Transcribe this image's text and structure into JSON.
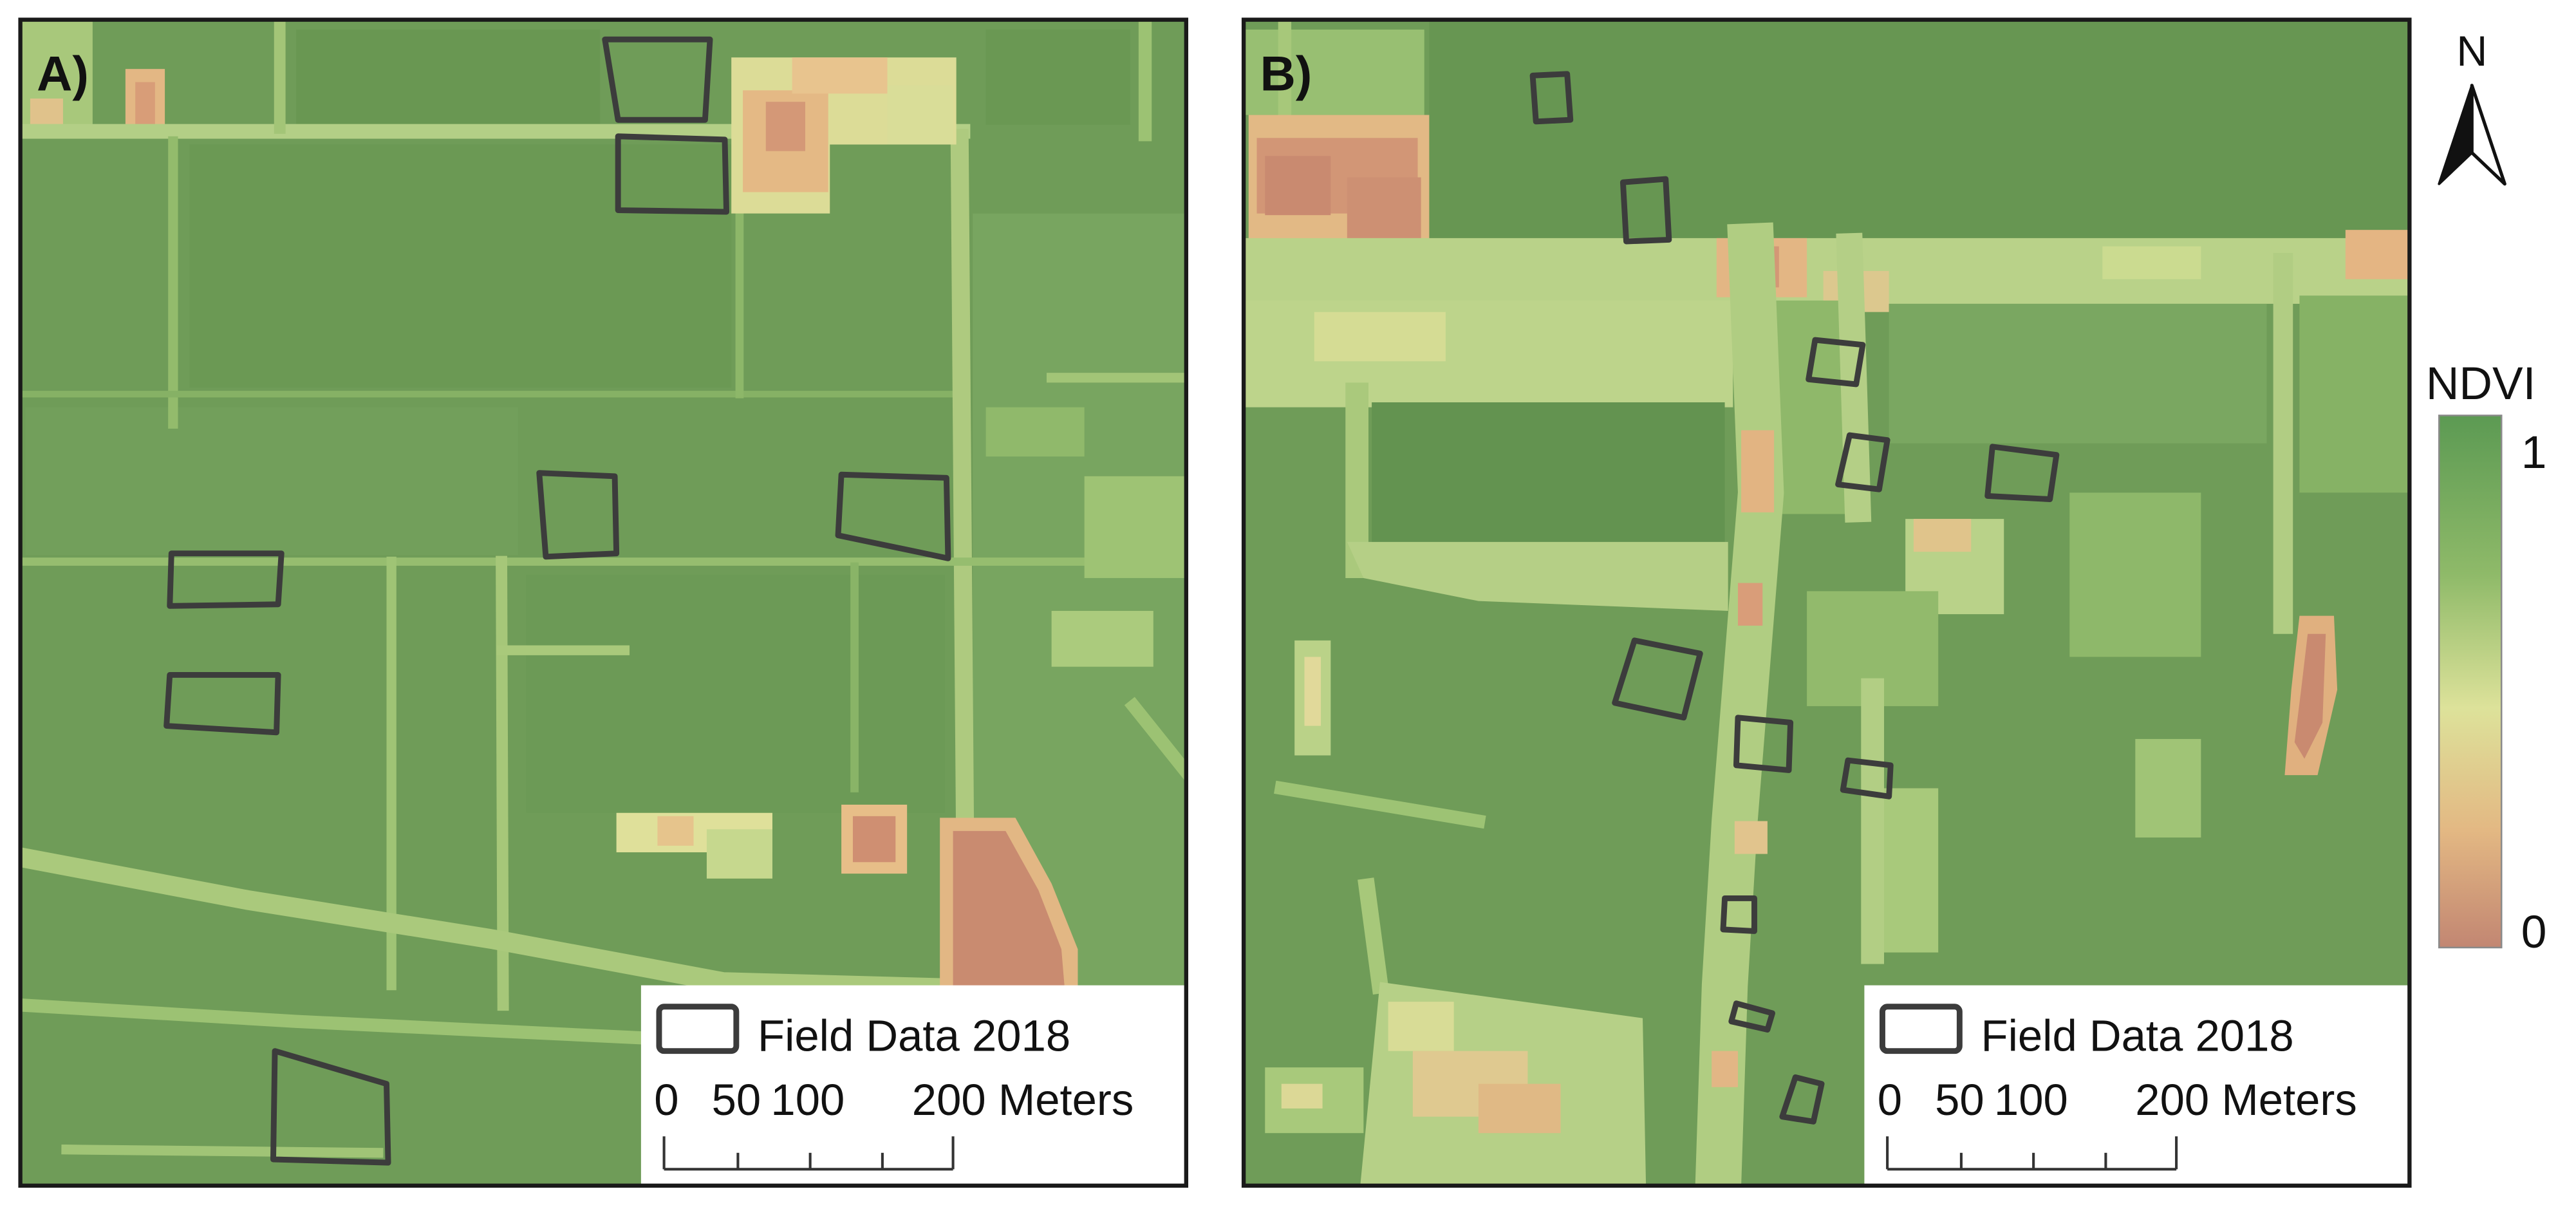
{
  "figure": {
    "panels": [
      {
        "label": "A)",
        "legend": {
          "item": "Field Data 2018",
          "scale_ticks": [
            "0",
            "50",
            "100",
            "200 Meters"
          ]
        }
      },
      {
        "label": "B)",
        "legend": {
          "item": "Field Data 2018",
          "scale_ticks": [
            "0",
            "50",
            "100",
            "200 Meters"
          ]
        }
      }
    ],
    "north_arrow": {
      "label": "N",
      "icon": "north-arrow-icon"
    },
    "colorbar": {
      "title": "NDVI",
      "max_label": "1",
      "min_label": "0",
      "colors": [
        "#5c9a53",
        "#8fba69",
        "#dde29a",
        "#e3b883",
        "#c28672"
      ]
    }
  },
  "colors": {
    "plot_outline": "#3c3c3c",
    "frame": "#1a1a1a",
    "background": "#ffffff"
  }
}
